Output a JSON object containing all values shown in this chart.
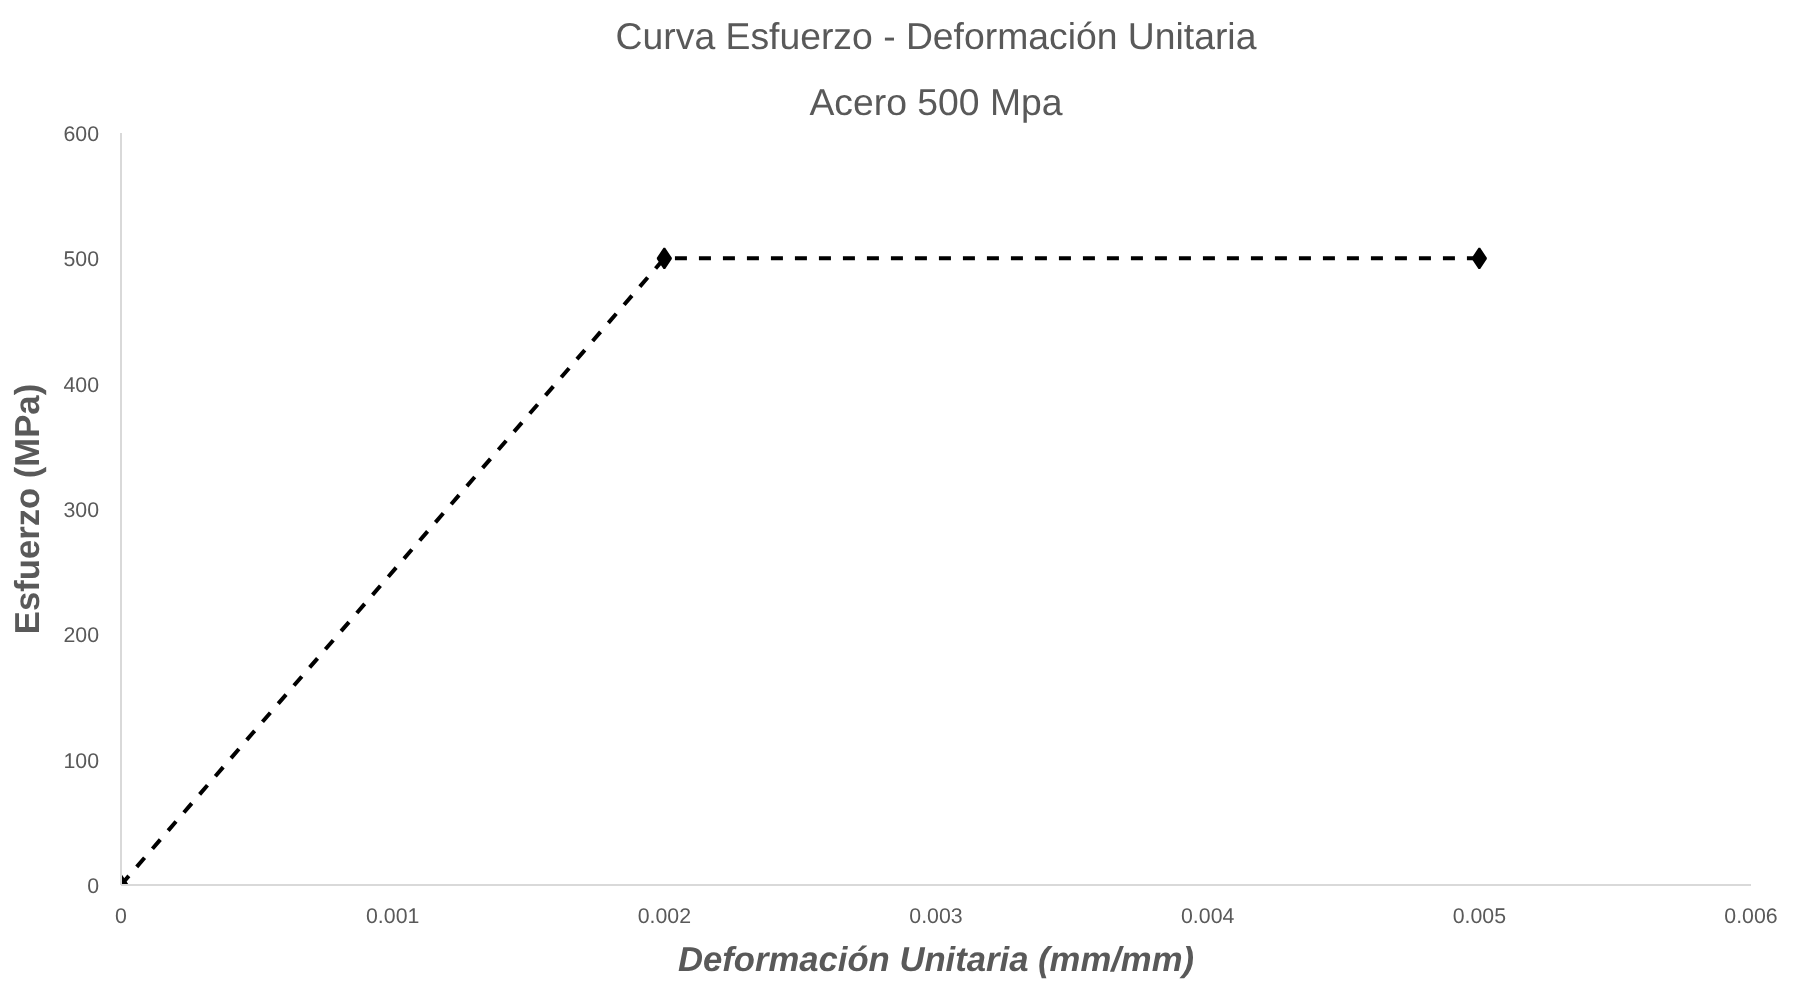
{
  "chart_data": {
    "type": "line",
    "title": "Curva Esfuerzo - Deformación Unitaria",
    "subtitle": "Acero 500 Mpa",
    "xlabel": "Deformación Unitaria (mm/mm)",
    "ylabel": "Esfuerzo (MPa)",
    "x": [
      0,
      0.002,
      0.005
    ],
    "series": [
      {
        "color": "#000000",
        "values": [
          0,
          500,
          500
        ]
      }
    ],
    "xlim": [
      0,
      0.006
    ],
    "xticks": [
      0,
      0.001,
      0.002,
      0.003,
      0.004,
      0.005,
      0.006
    ],
    "ylim": [
      0,
      600
    ],
    "yticks": [
      0,
      100,
      200,
      300,
      400,
      500,
      600
    ],
    "grid": false,
    "marker": "diamond",
    "line_style": "dashed"
  }
}
